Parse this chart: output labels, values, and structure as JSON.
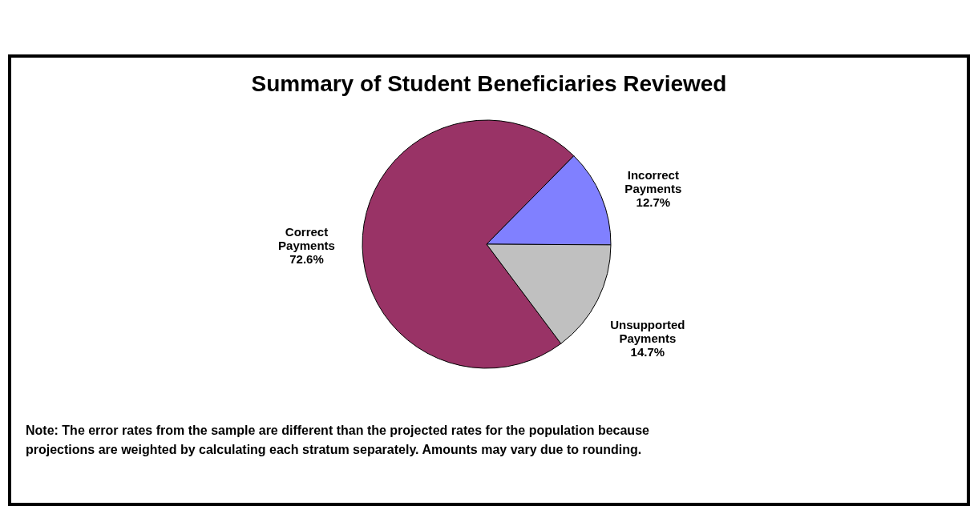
{
  "chart_data": {
    "type": "pie",
    "title": "Summary of Student Beneficiaries Reviewed",
    "categories": [
      "Correct Payments",
      "Incorrect Payments",
      "Unsupported Payments"
    ],
    "values": [
      72.6,
      12.7,
      14.7
    ],
    "colors": [
      "#993366",
      "#8080ff",
      "#c0c0c0"
    ],
    "value_labels": [
      "72.6%",
      "12.7%",
      "14.7%"
    ],
    "legend": false,
    "annotations": [
      "Note: The error rates from the sample are different than the projected rates for the population because projections are weighted by calculating each stratum separately.  Amounts may vary due to rounding."
    ]
  }
}
